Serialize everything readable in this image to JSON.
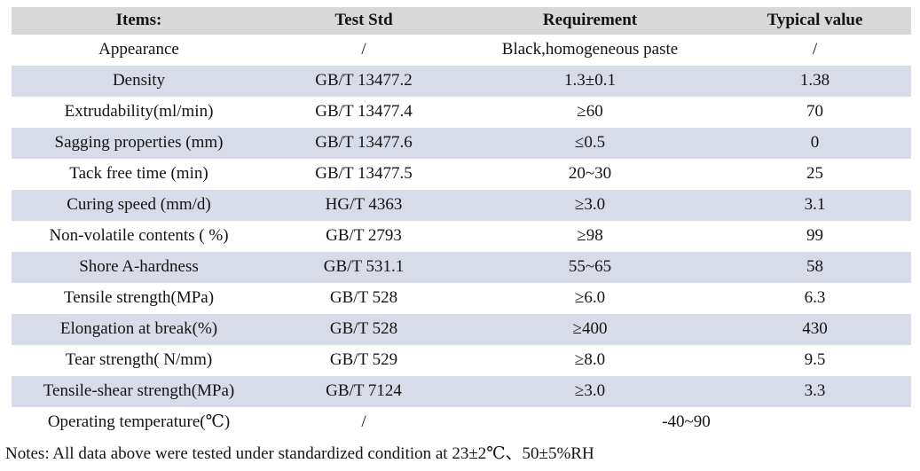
{
  "table": {
    "headers": [
      "Items:",
      "Test Std",
      "Requirement",
      "Typical value"
    ],
    "rows": [
      {
        "item": "Appearance",
        "std": "/",
        "req": "Black,homogeneous paste",
        "typ": "/"
      },
      {
        "item": "Density",
        "std": "GB/T 13477.2",
        "req": "1.3±0.1",
        "typ": "1.38"
      },
      {
        "item": "Extrudability(ml/min)",
        "std": "GB/T 13477.4",
        "req": "≥60",
        "typ": "70"
      },
      {
        "item": "Sagging properties (mm)",
        "std": "GB/T 13477.6",
        "req": "≤0.5",
        "typ": "0"
      },
      {
        "item": "Tack free time (min)",
        "std": "GB/T 13477.5",
        "req": "20~30",
        "typ": "25"
      },
      {
        "item": "Curing speed (mm/d)",
        "std": "HG/T 4363",
        "req": "≥3.0",
        "typ": "3.1"
      },
      {
        "item": "Non-volatile contents ( %)",
        "std": "GB/T 2793",
        "req": "≥98",
        "typ": "99"
      },
      {
        "item": "Shore A-hardness",
        "std": "GB/T 531.1",
        "req": "55~65",
        "typ": "58"
      },
      {
        "item": "Tensile strength(MPa)",
        "std": "GB/T 528",
        "req": "≥6.0",
        "typ": "6.3"
      },
      {
        "item": "Elongation at break(%)",
        "std": "GB/T 528",
        "req": "≥400",
        "typ": "430"
      },
      {
        "item": "Tear strength( N/mm)",
        "std": "GB/T 529",
        "req": "≥8.0",
        "typ": "9.5"
      },
      {
        "item": "Tensile-shear strength(MPa)",
        "std": "GB/T 7124",
        "req": "≥3.0",
        "typ": "3.3"
      },
      {
        "item": "Operating temperature(℃)",
        "std": "/",
        "req_span": "-40~90"
      }
    ],
    "colors": {
      "header_bg": "#d8d8d8",
      "band_bg": "#d7dce8",
      "text": "#141414"
    }
  },
  "notes": "Notes: All data above were tested under standardized condition at 23±2℃、50±5%RH"
}
